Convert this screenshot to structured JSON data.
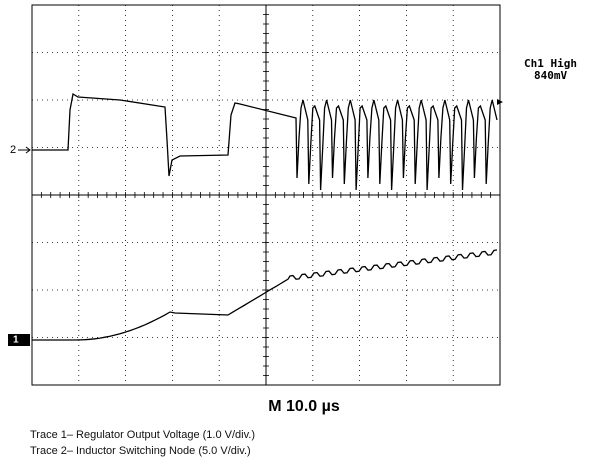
{
  "scope": {
    "ch1_label": "Ch1 High",
    "ch1_value": "840mV",
    "marker_2": "2",
    "marker_1": "1",
    "timebase": "M 10.0 µs"
  },
  "captions": [
    "Trace 1– Regulator Output Voltage (1.0 V/div.)",
    "Trace 2– Inductor Switching Node (5.0 V/div.)"
  ]
}
